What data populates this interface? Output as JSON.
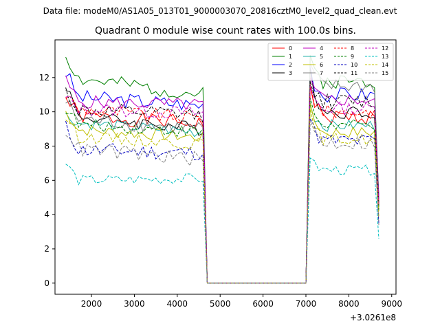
{
  "suptitle": "Data file: modeM0/AS1A05_013T01_9000003070_20816cztM0_level2_quad_clean.evt",
  "chart_data": {
    "type": "line",
    "title": "Quadrant 0 module wise count rates with 100.0s bins.",
    "xlabel": "",
    "ylabel": "",
    "x_offset_label": "+3.0261e8",
    "xlim": [
      1150,
      9100
    ],
    "ylim": [
      -0.65,
      14.2
    ],
    "xticks": [
      2000,
      3000,
      4000,
      5000,
      6000,
      7000,
      8000,
      9000
    ],
    "yticks": [
      0,
      2,
      4,
      6,
      8,
      10,
      12
    ],
    "legend_position": "upper-right",
    "gap": {
      "start": 4700,
      "end": 7000,
      "value": 0
    },
    "segments": [
      {
        "x_start": 1400,
        "x_end": 4700,
        "step": 100
      },
      {
        "x_start": 7000,
        "x_end": 8700,
        "step": 100
      }
    ],
    "series": [
      {
        "name": "0",
        "color": "#ff0000",
        "dashed": false,
        "start": 10.8,
        "level1": 9.8,
        "end1": 9.3,
        "peak2": 11.5,
        "level2": 9.7,
        "end2": 4.5,
        "noise": 0.45,
        "seed": 1
      },
      {
        "name": "1",
        "color": "#008000",
        "dashed": false,
        "start": 13.3,
        "level1": 12.0,
        "end1": 11.0,
        "peak2": 13.3,
        "level2": 11.8,
        "end2": 5.0,
        "noise": 0.45,
        "seed": 2
      },
      {
        "name": "2",
        "color": "#0000ff",
        "dashed": false,
        "start": 12.3,
        "level1": 10.9,
        "end1": 10.4,
        "peak2": 12.6,
        "level2": 11.0,
        "end2": 5.0,
        "noise": 0.45,
        "seed": 3
      },
      {
        "name": "3",
        "color": "#000000",
        "dashed": false,
        "start": 11.6,
        "level1": 9.8,
        "end1": 9.0,
        "peak2": 12.5,
        "level2": 10.0,
        "end2": 4.5,
        "noise": 0.4,
        "seed": 4
      },
      {
        "name": "4",
        "color": "#bf00bf",
        "dashed": false,
        "start": 11.8,
        "level1": 10.6,
        "end1": 10.4,
        "peak2": 12.0,
        "level2": 10.7,
        "end2": 5.0,
        "noise": 0.4,
        "seed": 5
      },
      {
        "name": "5",
        "color": "#20b2aa",
        "dashed": false,
        "start": 9.8,
        "level1": 9.4,
        "end1": 8.8,
        "peak2": 10.5,
        "level2": 9.2,
        "end2": 4.3,
        "noise": 0.35,
        "seed": 6
      },
      {
        "name": "6",
        "color": "#bfbf00",
        "dashed": false,
        "start": 10.0,
        "level1": 9.0,
        "end1": 8.5,
        "peak2": 10.5,
        "level2": 8.8,
        "end2": 4.2,
        "noise": 0.35,
        "seed": 7
      },
      {
        "name": "7",
        "color": "#808080",
        "dashed": false,
        "start": 10.6,
        "level1": 9.6,
        "end1": 9.0,
        "peak2": 12.8,
        "level2": 11.5,
        "end2": 4.8,
        "noise": 0.45,
        "seed": 8
      },
      {
        "name": "8",
        "color": "#ff0000",
        "dashed": true,
        "start": 11.0,
        "level1": 10.2,
        "end1": 9.6,
        "peak2": 11.6,
        "level2": 10.0,
        "end2": 4.6,
        "noise": 0.4,
        "seed": 9
      },
      {
        "name": "9",
        "color": "#008000",
        "dashed": true,
        "start": 10.2,
        "level1": 9.3,
        "end1": 8.8,
        "peak2": 10.8,
        "level2": 9.2,
        "end2": 4.3,
        "noise": 0.35,
        "seed": 10
      },
      {
        "name": "10",
        "color": "#0000bf",
        "dashed": true,
        "start": 9.1,
        "level1": 7.8,
        "end1": 7.6,
        "peak2": 9.6,
        "level2": 8.3,
        "end2": 3.5,
        "noise": 0.45,
        "seed": 11
      },
      {
        "name": "11",
        "color": "#000000",
        "dashed": true,
        "start": 11.2,
        "level1": 10.1,
        "end1": 9.8,
        "peak2": 11.8,
        "level2": 10.6,
        "end2": 4.7,
        "noise": 0.45,
        "seed": 12
      },
      {
        "name": "12",
        "color": "#bf00bf",
        "dashed": true,
        "start": 10.8,
        "level1": 10.2,
        "end1": 9.9,
        "peak2": 11.5,
        "level2": 10.2,
        "end2": 4.6,
        "noise": 0.4,
        "seed": 13
      },
      {
        "name": "13",
        "color": "#00bfbf",
        "dashed": true,
        "start": 7.0,
        "level1": 6.0,
        "end1": 6.1,
        "peak2": 7.3,
        "level2": 6.6,
        "end2": 2.6,
        "noise": 0.3,
        "seed": 14
      },
      {
        "name": "14",
        "color": "#bfbf00",
        "dashed": true,
        "start": 9.7,
        "level1": 8.6,
        "end1": 8.1,
        "peak2": 10.2,
        "level2": 8.4,
        "end2": 3.9,
        "noise": 0.35,
        "seed": 15
      },
      {
        "name": "15",
        "color": "#808080",
        "dashed": true,
        "start": 9.0,
        "level1": 7.9,
        "end1": 7.2,
        "peak2": 9.5,
        "level2": 8.2,
        "end2": 3.4,
        "noise": 0.45,
        "seed": 16
      }
    ]
  }
}
